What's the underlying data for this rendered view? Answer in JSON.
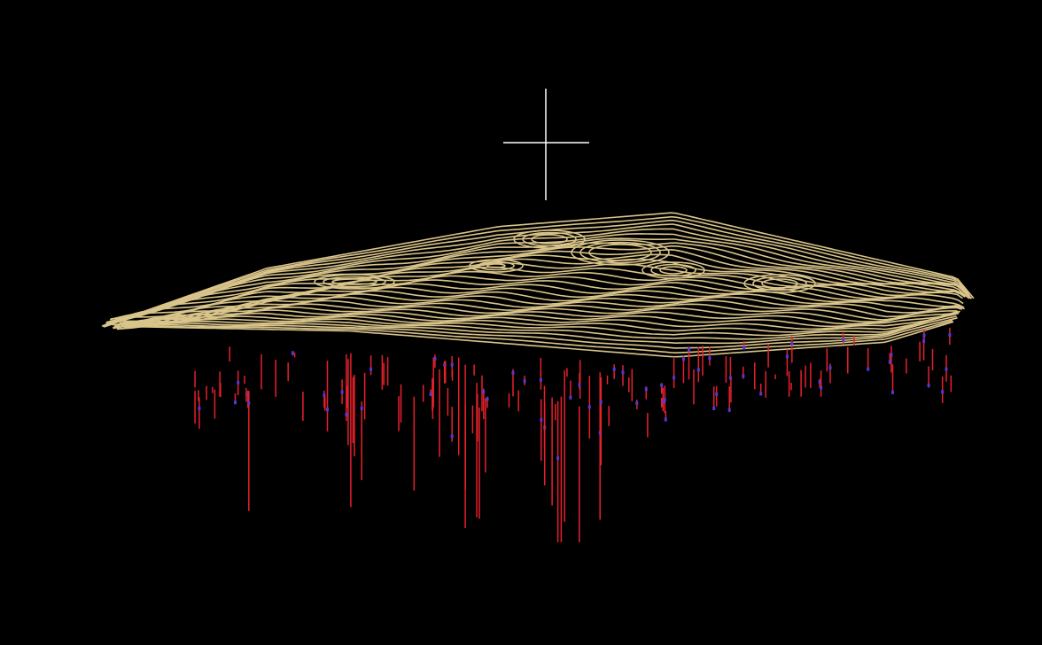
{
  "viewport": {
    "background_color": "#000000"
  },
  "scene": {
    "terrain": {
      "kind": "contour-wireframe",
      "color": "#D9C48A"
    },
    "drillholes": {
      "kind": "vertical-traces",
      "trace_color": "#E8202A",
      "marker_color": "#4B3BD9"
    },
    "crosshair": {
      "icon": "crosshair-icon",
      "color": "#FFFFFF"
    }
  }
}
